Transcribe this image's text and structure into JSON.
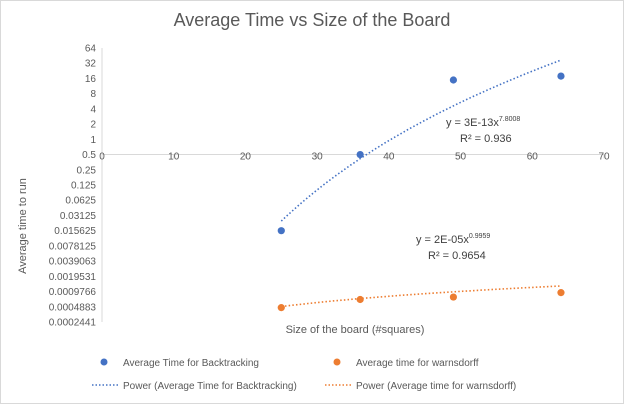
{
  "chart_data": {
    "type": "scatter",
    "title": "Average Time vs Size of the Board",
    "xlabel": "Size of the board (#squares)",
    "ylabel": "Average time to run",
    "xlim": [
      0,
      70
    ],
    "x_ticks": [
      "0",
      "10",
      "20",
      "30",
      "40",
      "50",
      "60",
      "70"
    ],
    "y_scale": "log2",
    "y_ticks": [
      "64",
      "32",
      "16",
      "8",
      "4",
      "2",
      "1",
      "0.5",
      "0.25",
      "0.125",
      "0.0625",
      "0.03125",
      "0.015625",
      "0.0078125",
      "0.0039063",
      "0.0019531",
      "0.0009766",
      "0.0004883",
      "0.0002441"
    ],
    "y_tick_values": [
      64,
      32,
      16,
      8,
      4,
      2,
      1,
      0.5,
      0.25,
      0.125,
      0.0625,
      0.03125,
      0.015625,
      0.0078125,
      0.0039063,
      0.0019531,
      0.0009766,
      0.0004883,
      0.0002441
    ],
    "ylim": [
      0.0002441,
      64
    ],
    "x_axis_crosses_y_at": 0.5,
    "grid": false,
    "legend_position": "bottom",
    "series": [
      {
        "name": "Average Time for Backtracking",
        "color": "#4472c4",
        "x": [
          25,
          36,
          49,
          64
        ],
        "y": [
          0.0156,
          0.5,
          14.9,
          17.8
        ]
      },
      {
        "name": "Average time for warnsdorff",
        "color": "#ed7d31",
        "x": [
          25,
          36,
          49,
          64
        ],
        "y": [
          0.00047,
          0.00068,
          0.00076,
          0.00093
        ]
      }
    ],
    "trendlines": [
      {
        "name": "Power (Average Time for Backtracking)",
        "color": "#4472c4",
        "type": "power",
        "coef": 3e-13,
        "exponent": 7.8008,
        "x_range": [
          25,
          64
        ],
        "equation_main": "y = 3E-13x",
        "equation_exp": "7.8008",
        "r2": "R² = 0.936"
      },
      {
        "name": "Power (Average time for warnsdorff)",
        "color": "#ed7d31",
        "type": "power",
        "coef": 2e-05,
        "exponent": 0.9959,
        "x_range": [
          25,
          64
        ],
        "equation_main": "y = 2E-05x",
        "equation_exp": "0.9959",
        "r2": "R² = 0.9654"
      }
    ]
  }
}
